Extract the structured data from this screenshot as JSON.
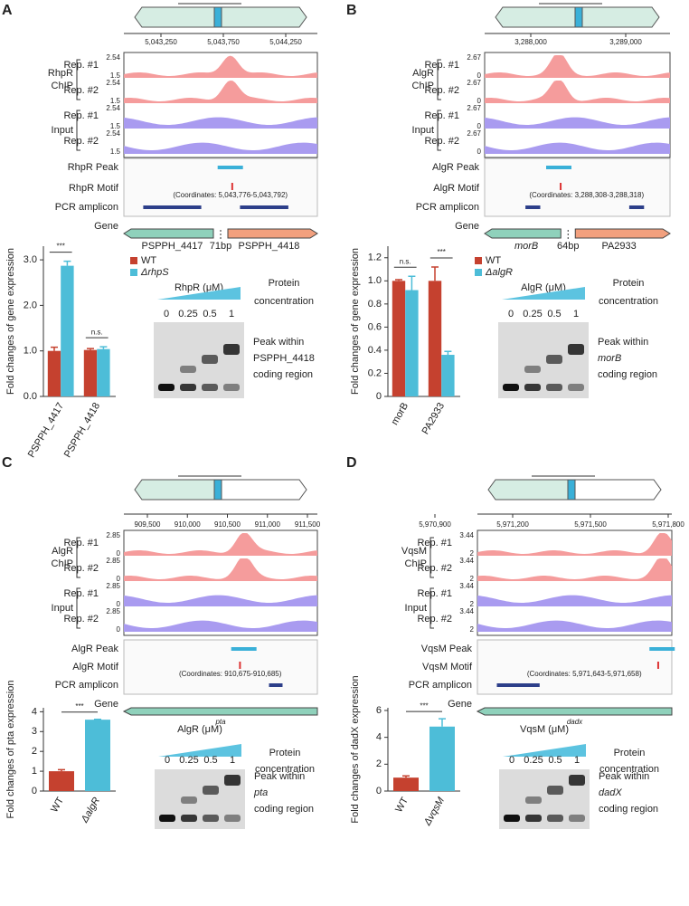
{
  "panels": [
    {
      "letter": "A",
      "coords": [
        "5,043,250",
        "5,043,750",
        "5,044,250"
      ],
      "groups": [
        {
          "label": [
            "RhpR",
            "ChIP"
          ],
          "reps": [
            "Rep. #1",
            "Rep. #2"
          ]
        },
        {
          "label": [
            "Input"
          ],
          "reps": [
            "Rep. #1",
            "Rep. #2"
          ]
        }
      ],
      "scales": [
        [
          "2.54",
          "1.5"
        ],
        [
          "2.54",
          "1.5"
        ],
        [
          "2.54",
          "1.5"
        ],
        [
          "2.54",
          "1.5"
        ]
      ],
      "rows": [
        "RhpR Peak",
        "RhpR Motif",
        "PCR amplicon",
        "Gene"
      ],
      "motif_coordinates": "(Coordinates: 5,043,776-5,043,792)",
      "genes": [
        "PSPPH_4417",
        "PSPPH_4418"
      ],
      "spacing": "71bp",
      "gel": {
        "protein": "RhpR (μM)",
        "protein_label": [
          "Protein",
          "concentration"
        ],
        "concentrations": [
          "0",
          "0.25",
          "0.5",
          "1"
        ],
        "note": [
          "Peak within",
          "PSPPH_4418",
          "coding region"
        ]
      }
    },
    {
      "letter": "B",
      "coords": [
        "3,288,000",
        "3,289,000"
      ],
      "groups": [
        {
          "label": [
            "AlgR",
            "ChIP"
          ],
          "reps": [
            "Rep. #1",
            "Rep. #2"
          ]
        },
        {
          "label": [
            "Input"
          ],
          "reps": [
            "Rep. #1",
            "Rep. #2"
          ]
        }
      ],
      "scales": [
        [
          "2.67",
          "0"
        ],
        [
          "2.67",
          "0"
        ],
        [
          "2.67",
          "0"
        ],
        [
          "2.67",
          "0"
        ]
      ],
      "rows": [
        "AlgR Peak",
        "AlgR Motif",
        "PCR amplicon",
        "Gene"
      ],
      "motif_coordinates": "(Coordinates: 3,288,308-3,288,318)",
      "genes": [
        "morB",
        "PA2933"
      ],
      "spacing": "64bp",
      "gel": {
        "protein": "AlgR (μM)",
        "protein_label": [
          "Protein",
          "concentration"
        ],
        "concentrations": [
          "0",
          "0.25",
          "0.5",
          "1"
        ],
        "note": [
          "Peak within",
          "morB",
          "coding region"
        ]
      }
    },
    {
      "letter": "C",
      "coords": [
        "909,500",
        "910,000",
        "910,500",
        "911,000",
        "911,500"
      ],
      "groups": [
        {
          "label": [
            "AlgR",
            "ChIP"
          ],
          "reps": [
            "Rep. #1",
            "Rep. #2"
          ]
        },
        {
          "label": [
            "Input"
          ],
          "reps": [
            "Rep. #1",
            "Rep. #2"
          ]
        }
      ],
      "scales": [
        [
          "2.85",
          "0"
        ],
        [
          "2.85",
          "0"
        ],
        [
          "2.85",
          "0"
        ],
        [
          "2.85",
          "0"
        ]
      ],
      "rows": [
        "AlgR Peak",
        "AlgR Motif",
        "PCR amplicon",
        "Gene"
      ],
      "motif_coordinates": "(Coordinates: 910,675-910,685)",
      "genes": [
        "pta"
      ],
      "gel": {
        "protein": "AlgR (μM)",
        "protein_label": [
          "Protein",
          "concentration"
        ],
        "concentrations": [
          "0",
          "0.25",
          "0.5",
          "1"
        ],
        "note": [
          "Peak within",
          "pta",
          "coding region"
        ]
      }
    },
    {
      "letter": "D",
      "coords": [
        "5,970,900",
        "5,971,200",
        "5,971,500",
        "5,971,800"
      ],
      "groups": [
        {
          "label": [
            "VqsM",
            "ChIP"
          ],
          "reps": [
            "Rep. #1",
            "Rep. #2"
          ]
        },
        {
          "label": [
            "Input"
          ],
          "reps": [
            "Rep. #1",
            "Rep. #2"
          ]
        }
      ],
      "scales": [
        [
          "3.44",
          "2"
        ],
        [
          "3.44",
          "2"
        ],
        [
          "3.44",
          "2"
        ],
        [
          "3.44",
          "2"
        ]
      ],
      "rows": [
        "VqsM Peak",
        "VqsM Motif",
        "PCR amplicon",
        "Gene"
      ],
      "motif_coordinates": "(Coordinates: 5,971,643-5,971,658)",
      "genes": [
        "dadx"
      ],
      "gel": {
        "protein": "VqsM (μM)",
        "protein_label": [
          "Protein",
          "concentration"
        ],
        "concentrations": [
          "0",
          "0.25",
          "0.5",
          "1"
        ],
        "note": [
          "Peak within",
          "dadX",
          "coding region"
        ]
      }
    }
  ],
  "chart_data": [
    {
      "type": "bar",
      "ylabel": "Fold changes of gene expression",
      "categories": [
        "PSPPH_4417",
        "PSPPH_4418"
      ],
      "series": [
        {
          "name": "WT",
          "color": "#c5412f",
          "values": [
            1.0,
            1.02
          ],
          "errors": [
            0.08,
            0.03
          ]
        },
        {
          "name": "ΔrhpS",
          "color": "#4dbdd8",
          "values": [
            2.87,
            1.04
          ],
          "errors": [
            0.1,
            0.05
          ]
        }
      ],
      "ylim": [
        0,
        3.3
      ],
      "yticks": [
        {
          "value": 0,
          "label": "0.0"
        },
        {
          "value": 1,
          "label": "1.0"
        },
        {
          "value": 2,
          "label": "2.0"
        },
        {
          "value": 3,
          "label": "3.0"
        }
      ],
      "annotations": [
        "***",
        "n.s."
      ]
    },
    {
      "type": "bar",
      "ylabel": "Fold changes of gene expression",
      "categories": [
        "morB",
        "PA2933"
      ],
      "series": [
        {
          "name": "WT",
          "color": "#c5412f",
          "values": [
            1.0,
            1.0
          ],
          "errors": [
            0.01,
            0.12
          ]
        },
        {
          "name": "ΔalgR",
          "color": "#4dbdd8",
          "values": [
            0.92,
            0.36
          ],
          "errors": [
            0.12,
            0.03
          ]
        }
      ],
      "ylim": [
        0,
        1.3
      ],
      "yticks": [
        0,
        0.2,
        0.4,
        0.6,
        0.8,
        {
          "value": 1,
          "label": "1.0"
        },
        1.2
      ],
      "annotations": [
        "n.s.",
        "***"
      ]
    },
    {
      "type": "bar",
      "ylabel": "Fold changes of pta expression",
      "categories": [
        "WT",
        "ΔalgR"
      ],
      "values": [
        1.0,
        3.6
      ],
      "errors": [
        0.08,
        0.02
      ],
      "colors": [
        "#c5412f",
        "#4dbdd8"
      ],
      "ylim": [
        0,
        4.2
      ],
      "yticks": [
        0,
        1,
        2,
        3,
        4
      ],
      "annotations": [
        "***"
      ]
    },
    {
      "type": "bar",
      "ylabel": "Fold changes of dadX expression",
      "categories": [
        "WT",
        "ΔvqsM"
      ],
      "values": [
        1.0,
        4.8
      ],
      "errors": [
        0.13,
        0.58
      ],
      "colors": [
        "#c5412f",
        "#4dbdd8"
      ],
      "ylim": [
        0,
        6.2
      ],
      "yticks": [
        0,
        2,
        4,
        6
      ],
      "annotations": [
        "***"
      ]
    }
  ]
}
